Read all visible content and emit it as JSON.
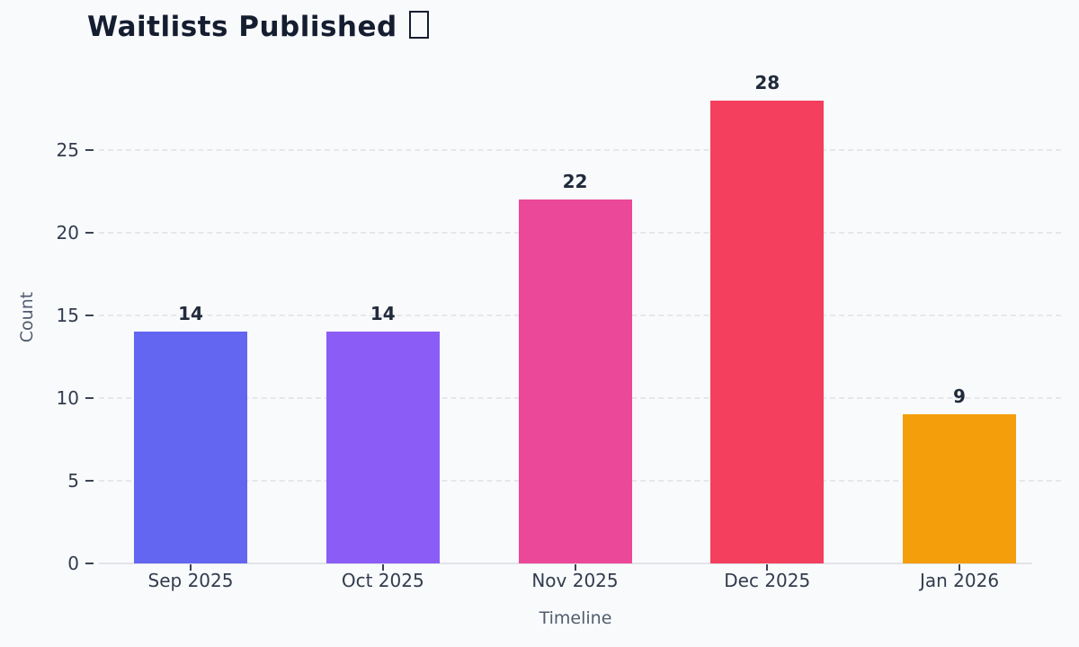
{
  "page": {
    "background_color": "#f8fafc",
    "title_color": "#151d30",
    "grid_color": "#e5e7eb",
    "tick_text_color": "#333c4d",
    "axis_title_color": "#525c6e",
    "value_label_color": "#222b3c"
  },
  "chart_data": {
    "type": "bar",
    "title": "Waitlists Published",
    "title_icon": "missing-glyph-box",
    "categories": [
      "Sep 2025",
      "Oct 2025",
      "Nov 2025",
      "Dec 2025",
      "Jan 2026"
    ],
    "values": [
      14,
      14,
      22,
      28,
      9
    ],
    "bar_colors": [
      "#6366f1",
      "#8b5cf6",
      "#ec4899",
      "#f43f5e",
      "#f59e0b"
    ],
    "value_labels": [
      "14",
      "14",
      "22",
      "28",
      "9"
    ],
    "xlabel": "Timeline",
    "ylabel": "Count",
    "yticks": [
      0,
      5,
      10,
      15,
      20,
      25
    ],
    "ylim": [
      0,
      29.5
    ],
    "grid": "horizontal-dashed",
    "legend": "none"
  }
}
